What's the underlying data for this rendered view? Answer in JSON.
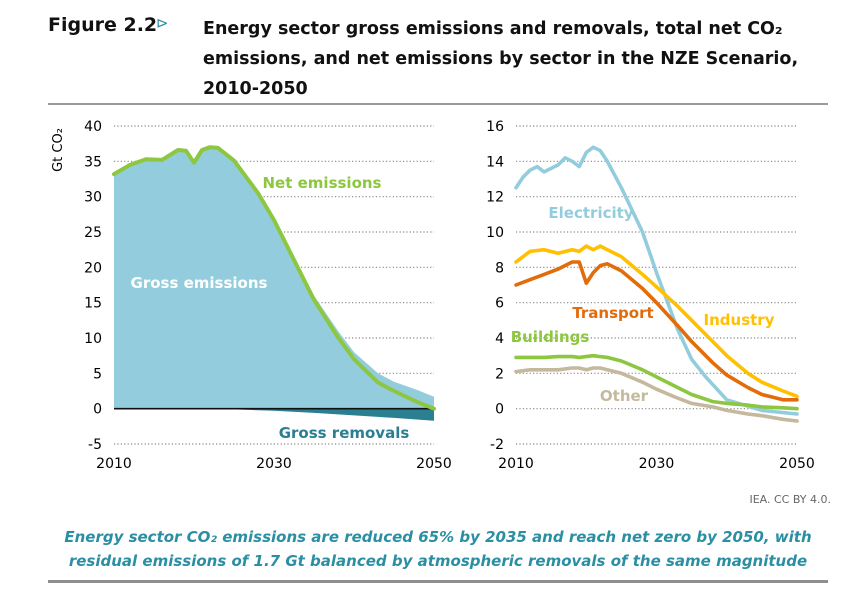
{
  "figure": {
    "label": "Figure 2.2",
    "arrow": "⊳",
    "title_line1": "Energy sector gross emissions and removals, total net CO₂",
    "title_line2": "emissions, and net emissions by sector in the NZE Scenario,",
    "title_line3": "2010-2050",
    "credit": "IEA. CC BY 4.0.",
    "caption_line1": "Energy sector CO₂ emissions are reduced 65% by 2035 and reach net zero by 2050, with",
    "caption_line2": "residual emissions of 1.7 Gt balanced by atmospheric removals of the same magnitude"
  },
  "colors": {
    "gross_fill": "#93cddd",
    "gross_removals_fill": "#2a7f91",
    "net_line": "#8dc63f",
    "electricity": "#93cddd",
    "industry": "#ffc000",
    "transport": "#e36c0a",
    "buildings": "#8dc63f",
    "other": "#c4b99c",
    "caption": "#2a8fa3",
    "gridline": "#888888"
  },
  "chart_data": [
    {
      "type": "area",
      "ylabel": "Gt CO₂",
      "ylim": [
        -5,
        40
      ],
      "yticks": [
        -5,
        0,
        5,
        10,
        15,
        20,
        25,
        30,
        35,
        40
      ],
      "xlim": [
        2010,
        2050
      ],
      "xticks": [
        2010,
        2030,
        2050
      ],
      "grid": true,
      "series": [
        {
          "name": "Gross emissions",
          "x": [
            2010,
            2012,
            2014,
            2016,
            2018,
            2019,
            2020,
            2021,
            2022,
            2023,
            2025,
            2028,
            2030,
            2033,
            2035,
            2038,
            2040,
            2043,
            2045,
            2048,
            2050
          ],
          "values": [
            33.2,
            34.5,
            35.3,
            35.2,
            36.6,
            36.5,
            34.8,
            36.6,
            37.0,
            36.9,
            35.2,
            30.8,
            27.0,
            20.5,
            16.0,
            11.0,
            8.0,
            5.0,
            3.8,
            2.6,
            1.7
          ]
        },
        {
          "name": "Gross removals",
          "x": [
            2010,
            2023,
            2025,
            2030,
            2035,
            2040,
            2045,
            2050
          ],
          "values": [
            0,
            0,
            -0.1,
            -0.3,
            -0.6,
            -0.95,
            -1.3,
            -1.7
          ]
        },
        {
          "name": "Net emissions",
          "x": [
            2010,
            2012,
            2014,
            2016,
            2018,
            2019,
            2020,
            2021,
            2022,
            2023,
            2025,
            2028,
            2030,
            2033,
            2035,
            2038,
            2040,
            2043,
            2045,
            2048,
            2050
          ],
          "values": [
            33.2,
            34.5,
            35.3,
            35.2,
            36.6,
            36.5,
            34.8,
            36.6,
            37.0,
            36.9,
            35.1,
            30.5,
            26.7,
            19.9,
            15.4,
            10.1,
            7.0,
            3.7,
            2.5,
            0.9,
            0.0
          ]
        }
      ]
    },
    {
      "type": "line",
      "ylim": [
        -2,
        16
      ],
      "yticks": [
        -2,
        0,
        2,
        4,
        6,
        8,
        10,
        12,
        14,
        16
      ],
      "xlim": [
        2010,
        2050
      ],
      "xticks": [
        2010,
        2030,
        2050
      ],
      "grid": true,
      "series": [
        {
          "name": "Electricity",
          "x": [
            2010,
            2011,
            2012,
            2013,
            2014,
            2015,
            2016,
            2017,
            2018,
            2019,
            2020,
            2021,
            2022,
            2023,
            2025,
            2028,
            2030,
            2033,
            2035,
            2037,
            2040,
            2045,
            2050
          ],
          "values": [
            12.5,
            13.1,
            13.5,
            13.7,
            13.4,
            13.6,
            13.8,
            14.2,
            14.0,
            13.7,
            14.5,
            14.8,
            14.6,
            14.0,
            12.5,
            10.0,
            7.7,
            4.5,
            2.8,
            1.8,
            0.5,
            -0.1,
            -0.3
          ]
        },
        {
          "name": "Industry",
          "x": [
            2010,
            2012,
            2014,
            2016,
            2018,
            2019,
            2020,
            2021,
            2022,
            2023,
            2025,
            2028,
            2030,
            2033,
            2035,
            2038,
            2040,
            2043,
            2045,
            2048,
            2050
          ],
          "values": [
            8.3,
            8.9,
            9.0,
            8.8,
            9.0,
            8.9,
            9.2,
            9.0,
            9.2,
            9.0,
            8.6,
            7.6,
            6.9,
            5.8,
            5.0,
            3.8,
            3.0,
            2.0,
            1.5,
            1.0,
            0.7
          ]
        },
        {
          "name": "Transport",
          "x": [
            2010,
            2012,
            2014,
            2016,
            2018,
            2019,
            2020,
            2021,
            2022,
            2023,
            2025,
            2028,
            2030,
            2033,
            2035,
            2038,
            2040,
            2043,
            2045,
            2048,
            2050
          ],
          "values": [
            7.0,
            7.3,
            7.6,
            7.9,
            8.3,
            8.3,
            7.1,
            7.7,
            8.1,
            8.2,
            7.8,
            6.8,
            6.0,
            4.7,
            3.8,
            2.6,
            1.9,
            1.2,
            0.8,
            0.5,
            0.5
          ]
        },
        {
          "name": "Buildings",
          "x": [
            2010,
            2012,
            2014,
            2016,
            2018,
            2019,
            2020,
            2021,
            2022,
            2023,
            2025,
            2028,
            2030,
            2033,
            2035,
            2038,
            2040,
            2043,
            2045,
            2048,
            2050
          ],
          "values": [
            2.9,
            2.9,
            2.9,
            2.95,
            2.95,
            2.9,
            2.95,
            3.0,
            2.95,
            2.9,
            2.7,
            2.2,
            1.8,
            1.2,
            0.8,
            0.4,
            0.3,
            0.2,
            0.1,
            0.05,
            0.0
          ]
        },
        {
          "name": "Other",
          "x": [
            2010,
            2012,
            2014,
            2016,
            2018,
            2019,
            2020,
            2021,
            2022,
            2023,
            2025,
            2028,
            2030,
            2033,
            2035,
            2038,
            2040,
            2043,
            2045,
            2048,
            2050
          ],
          "values": [
            2.1,
            2.2,
            2.2,
            2.2,
            2.3,
            2.3,
            2.2,
            2.3,
            2.3,
            2.2,
            2.0,
            1.5,
            1.1,
            0.6,
            0.3,
            0.1,
            -0.1,
            -0.3,
            -0.4,
            -0.6,
            -0.7
          ]
        }
      ]
    }
  ]
}
